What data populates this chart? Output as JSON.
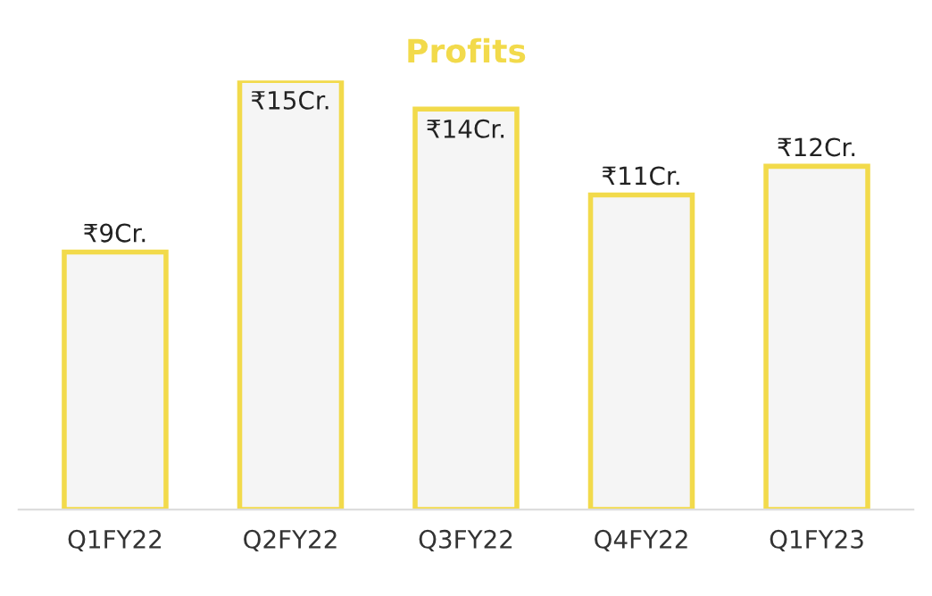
{
  "chart_data": {
    "type": "bar",
    "title": "Profits",
    "categories": [
      "Q1FY22",
      "Q2FY22",
      "Q3FY22",
      "Q4FY22",
      "Q1FY23"
    ],
    "values": [
      9,
      15,
      14,
      11,
      12
    ],
    "value_labels": [
      "₹9Cr.",
      "₹15Cr.",
      "₹14Cr.",
      "₹11Cr.",
      "₹12Cr."
    ],
    "color": "#f2da4b",
    "grid": false,
    "legend": false
  }
}
